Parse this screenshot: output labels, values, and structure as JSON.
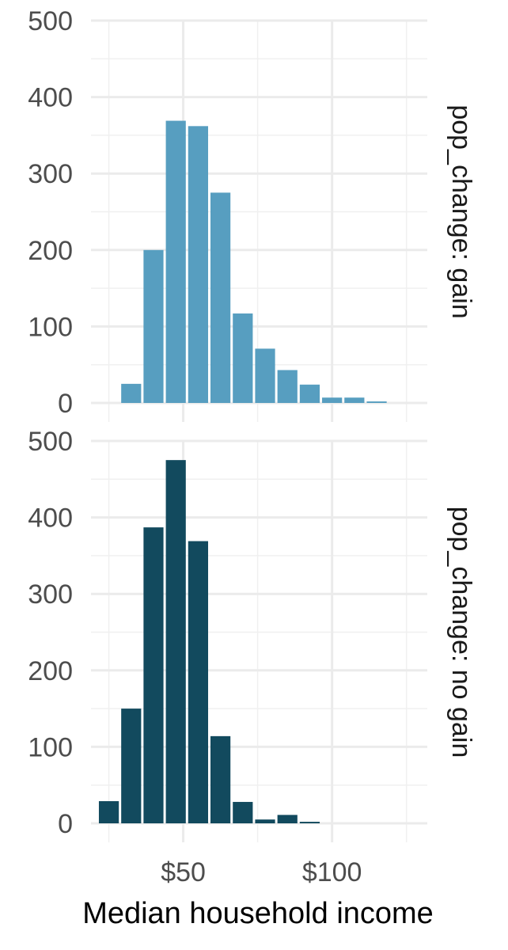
{
  "chart_data": {
    "type": "bar",
    "xlabel": "Median household income",
    "ylabel": "",
    "x_ticks": [
      {
        "value": 50,
        "label": "$50"
      },
      {
        "value": 100,
        "label": "$100"
      }
    ],
    "x_range": [
      19,
      132
    ],
    "bin_width": 7.5,
    "grid": true,
    "panels": [
      {
        "strip_label": "pop_change: gain",
        "color": "#579ec0",
        "ylim": [
          0,
          500
        ],
        "y_ticks": [
          0,
          100,
          200,
          300,
          400,
          500
        ],
        "bin_centers": [
          25,
          32.5,
          40,
          47.5,
          55,
          62.5,
          70,
          77.5,
          85,
          92.5,
          100,
          107.5,
          115,
          122.5,
          130
        ],
        "values": [
          0,
          25,
          200,
          369,
          362,
          275,
          117,
          71,
          43,
          24,
          7,
          7,
          2,
          0,
          0
        ]
      },
      {
        "strip_label": "pop_change: no gain",
        "color": "#124a5e",
        "ylim": [
          0,
          500
        ],
        "y_ticks": [
          0,
          100,
          200,
          300,
          400,
          500
        ],
        "bin_centers": [
          25,
          32.5,
          40,
          47.5,
          55,
          62.5,
          70,
          77.5,
          85,
          92.5,
          100,
          107.5,
          115,
          122.5,
          130
        ],
        "values": [
          29,
          150,
          387,
          475,
          369,
          114,
          28,
          5,
          11,
          2,
          0,
          0,
          0,
          0,
          0
        ]
      }
    ]
  }
}
